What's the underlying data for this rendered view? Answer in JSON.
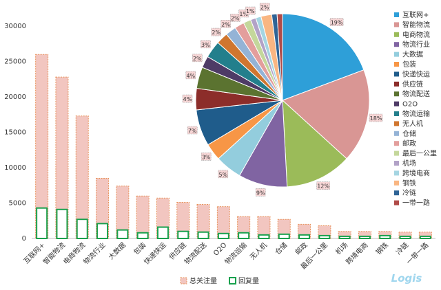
{
  "watermark": "Logis",
  "chart_data": [
    {
      "type": "bar",
      "categories": [
        "互联网+",
        "智能物流",
        "电商物流",
        "物流行业",
        "大数据",
        "包装",
        "快递快运",
        "供应链",
        "物流配送",
        "O2O",
        "物流运输",
        "无人机",
        "仓储",
        "邮政",
        "最后一公里",
        "机场",
        "跨境电商",
        "钢铁",
        "冷链",
        "一带一路"
      ],
      "series": [
        {
          "name": "总关注量",
          "color": "#f2c6c0",
          "values": [
            26000,
            22800,
            17300,
            8500,
            7400,
            6000,
            5700,
            5100,
            4800,
            4500,
            3100,
            3100,
            2700,
            2000,
            1800,
            1000,
            1000,
            1000,
            900,
            900
          ]
        },
        {
          "name": "回复量",
          "color": "#19a14e",
          "values": [
            4300,
            4100,
            2700,
            2100,
            1200,
            800,
            1600,
            1000,
            900,
            700,
            800,
            500,
            600,
            500,
            400,
            300,
            300,
            400,
            300,
            300
          ]
        }
      ],
      "y_ticks": [
        "0",
        "5000",
        "10000",
        "15000",
        "20000",
        "25000",
        "30000"
      ],
      "ylim": [
        0,
        30000
      ],
      "legend_position": "bottom"
    },
    {
      "type": "pie",
      "labels": [
        "互联网+",
        "智能物流",
        "电商物流",
        "物流行业",
        "大数据",
        "包装",
        "快递快运",
        "供应链",
        "物流配送",
        "O2O",
        "物流运输",
        "无人机",
        "仓储",
        "邮政",
        "最后一公里",
        "机场",
        "跨境电商",
        "钢铁",
        "冷链",
        "一带一路"
      ],
      "values": [
        19.3,
        17.5,
        12.4,
        9.1,
        5.0,
        3.2,
        6.8,
        4.0,
        4.0,
        2.2,
        3.2,
        2.2,
        2.0,
        1.8,
        1.4,
        1.0,
        1.0,
        2.0,
        1.0,
        1.0
      ],
      "data_labels": [
        "19%",
        "18%",
        "12%",
        "9%",
        "5%",
        "3%",
        "7%",
        "4%",
        "4%",
        "2%",
        "3%",
        "2%",
        "2%",
        "2%",
        "1%",
        "1%",
        "",
        "2%",
        "",
        ""
      ],
      "colors": [
        "#2e9fd8",
        "#d99694",
        "#9bbb59",
        "#8064a2",
        "#93cddd",
        "#f79646",
        "#1f5c8b",
        "#8c2d2a",
        "#5b7330",
        "#4e3b66",
        "#237f8c",
        "#d0762f",
        "#94b3d6",
        "#e39e9c",
        "#c4d79b",
        "#b2a2c7",
        "#a5d5e2",
        "#f9b682",
        "#2f6496",
        "#b04b48"
      ],
      "legend_position": "right"
    }
  ]
}
